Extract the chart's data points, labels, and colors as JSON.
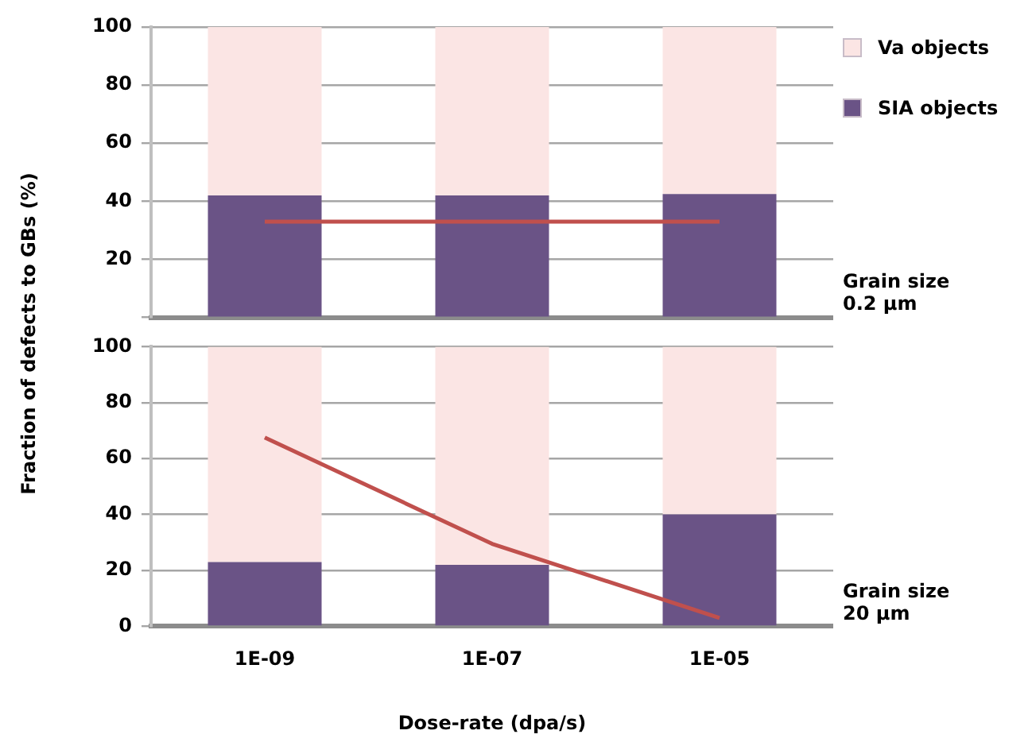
{
  "chart_data": [
    {
      "type": "bar",
      "stacked": true,
      "ylabel": "Fraction of defects to GBs (%)",
      "categories": [
        "1E-09",
        "1E-07",
        "1E-05"
      ],
      "series": [
        {
          "name": "SIA objects",
          "color": "#6a5386",
          "values": [
            42,
            42,
            42.5
          ]
        },
        {
          "name": "Va objects",
          "color": "#fbe5e4",
          "values": [
            58,
            58,
            57.5
          ]
        },
        {
          "type": "line",
          "color": "#c0504d",
          "values": [
            33,
            33,
            33
          ]
        }
      ],
      "ylim": [
        0,
        100
      ],
      "yticks": [
        {
          "value": 0,
          "label": null
        },
        20,
        40,
        60,
        80,
        100
      ],
      "grid": "y",
      "tick_labels": "y",
      "legend": "top right",
      "marker": "none",
      "annotations": [
        "Grain size 0.2 µm"
      ]
    },
    {
      "type": "bar",
      "stacked": true,
      "xlabel": "Dose-rate (dpa/s)",
      "categories": [
        "1E-09",
        "1E-07",
        "1E-05"
      ],
      "series": [
        {
          "name": "SIA objects",
          "color": "#6a5386",
          "values": [
            23,
            22,
            40
          ]
        },
        {
          "name": "Va objects",
          "color": "#fbe5e4",
          "values": [
            77,
            78,
            60
          ]
        },
        {
          "type": "line",
          "color": "#c0504d",
          "values": [
            67.5,
            29.5,
            3
          ]
        }
      ],
      "ylim": [
        0,
        100
      ],
      "yticks": [
        0,
        20,
        40,
        60,
        80,
        100
      ],
      "grid": "y",
      "marker": "none",
      "annotations": [
        "Grain size 20 µm"
      ]
    }
  ]
}
